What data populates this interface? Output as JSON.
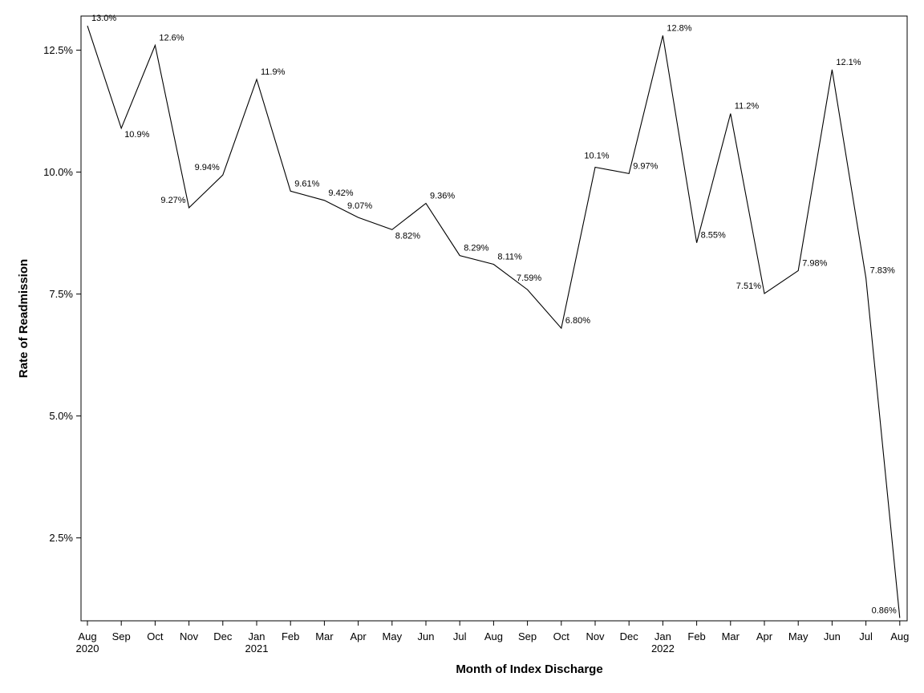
{
  "chart_data": {
    "type": "line",
    "title": "",
    "xlabel": "Month of Index Discharge",
    "ylabel": "Rate of Readmission",
    "ylim": [
      0.8,
      13.2
    ],
    "yticks": [
      2.5,
      5.0,
      7.5,
      10.0,
      12.5
    ],
    "ytick_labels": [
      "2.5%",
      "5.0%",
      "7.5%",
      "10.0%",
      "12.5%"
    ],
    "grid": false,
    "legend": "none",
    "categories": [
      "Aug",
      "Sep",
      "Oct",
      "Nov",
      "Dec",
      "Jan",
      "Feb",
      "Mar",
      "Apr",
      "May",
      "Jun",
      "Jul",
      "Aug",
      "Sep",
      "Oct",
      "Nov",
      "Dec",
      "Jan",
      "Feb",
      "Mar",
      "Apr",
      "May",
      "Jun",
      "Jul",
      "Aug"
    ],
    "year_labels": [
      {
        "index": 0,
        "label": "2020"
      },
      {
        "index": 5,
        "label": "2021"
      },
      {
        "index": 17,
        "label": "2022"
      }
    ],
    "series": [
      {
        "name": "Rate of Readmission",
        "values": [
          13.0,
          10.9,
          12.6,
          9.27,
          9.94,
          11.9,
          9.61,
          9.42,
          9.07,
          8.82,
          9.36,
          8.29,
          8.11,
          7.59,
          6.8,
          10.1,
          9.97,
          12.8,
          8.55,
          11.2,
          7.51,
          7.98,
          12.1,
          7.83,
          0.86
        ],
        "labels": [
          "13.0%",
          "10.9%",
          "12.6%",
          "9.27%",
          "9.94%",
          "11.9%",
          "9.61%",
          "9.42%",
          "9.07%",
          "8.82%",
          "9.36%",
          "8.29%",
          "8.11%",
          "7.59%",
          "6.80%",
          "10.1%",
          "9.97%",
          "12.8%",
          "8.55%",
          "11.2%",
          "7.51%",
          "7.98%",
          "12.1%",
          "7.83%",
          "0.86%"
        ],
        "label_positions": [
          "right",
          "below",
          "right",
          "left",
          "left",
          "right",
          "right",
          "right",
          "above",
          "below",
          "right",
          "right",
          "right",
          "above",
          "right",
          "above",
          "right",
          "right",
          "right",
          "right",
          "left",
          "right",
          "right",
          "right",
          "left"
        ]
      }
    ]
  }
}
